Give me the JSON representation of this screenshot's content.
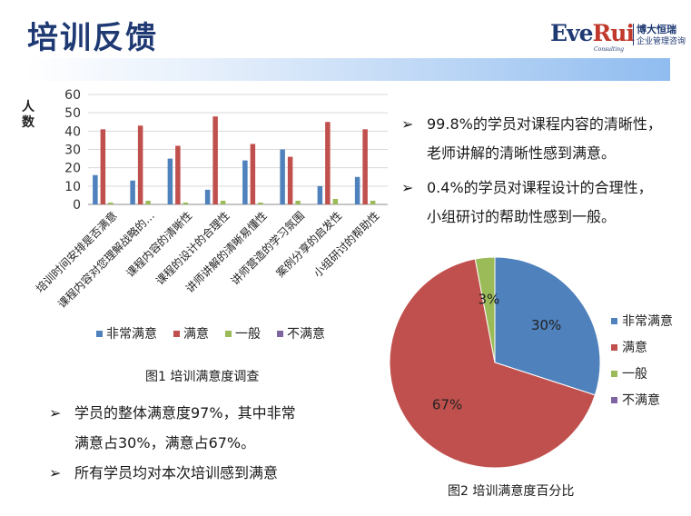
{
  "header": {
    "title": "培训反馈"
  },
  "logo": {
    "brand_a": "Eve",
    "brand_b": "Rui",
    "sub": "Consulting",
    "cn_line1": "博大恒瑞",
    "cn_line2": "企业管理咨询"
  },
  "colors": {
    "title": "#1f3a73",
    "series": [
      "#4f81bd",
      "#c0504d",
      "#9bbb59",
      "#8064a2"
    ]
  },
  "chart_data": [
    {
      "type": "bar",
      "ylabel": "人数",
      "ylim": [
        0,
        60
      ],
      "yticks": [
        "0",
        "10",
        "20",
        "30",
        "40",
        "50",
        "60"
      ],
      "grid": true,
      "legend": "bottom",
      "categories": [
        "培训时间安排是否满意",
        "课程内容对您理解战略的…",
        "课程内容的清晰性",
        "课程的设计的合理性",
        "讲师讲解的清晰易懂性",
        "讲师营造的学习氛围",
        "案例分享的启发性",
        "小组研讨的帮助性"
      ],
      "series": [
        {
          "name": "非常满意",
          "values": [
            16,
            13,
            25,
            8,
            24,
            30,
            10,
            15
          ]
        },
        {
          "name": "满意",
          "values": [
            41,
            43,
            32,
            48,
            33,
            26,
            45,
            41
          ]
        },
        {
          "name": "一般",
          "values": [
            1,
            2,
            1,
            2,
            1,
            2,
            3,
            2
          ]
        },
        {
          "name": "不满意",
          "values": [
            0,
            0,
            0,
            0,
            0,
            0,
            0,
            0
          ]
        }
      ]
    },
    {
      "type": "pie",
      "legend": "right",
      "slices": [
        {
          "name": "非常满意",
          "value": 30,
          "label": "30%"
        },
        {
          "name": "满意",
          "value": 67,
          "label": "67%"
        },
        {
          "name": "一般",
          "value": 3,
          "label": "3%"
        },
        {
          "name": "不满意",
          "value": 0,
          "label": ""
        }
      ]
    }
  ],
  "captions": {
    "fig1": "图1 培训满意度调查",
    "fig2": "图2 培训满意度百分比"
  },
  "right_bullets": [
    {
      "arrow": "➢",
      "line1": "99.8%的学员对课程内容的清晰性，",
      "line2": "老师讲解的清晰性感到满意。"
    },
    {
      "arrow": "➢",
      "line1": "0.4%的学员对课程设计的合理性，",
      "line2": "小组研讨的帮助性感到一般。"
    }
  ],
  "left_bullets": [
    {
      "arrow": "➢",
      "line1": "学员的整体满意度97%，其中非常",
      "line2": "满意占30%，满意占67%。"
    },
    {
      "arrow": "➢",
      "line1": "所有学员均对本次培训感到满意",
      "line2": ""
    }
  ]
}
